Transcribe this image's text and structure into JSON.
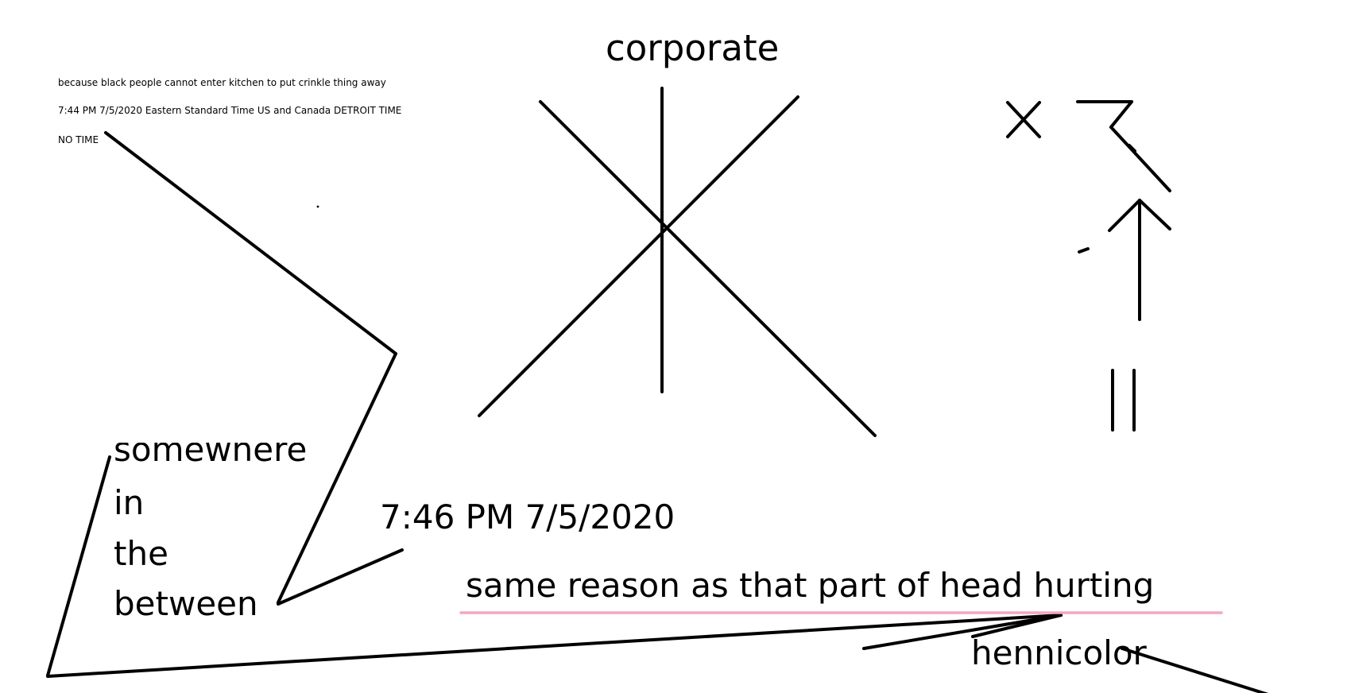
{
  "canvas": {
    "background": "#ffffff",
    "ink_color": "#000000",
    "underline_color": "#f4a6c1"
  },
  "notes": {
    "line1": "because black people cannot enter kitchen to put crinkle thing away",
    "line2": "7:44 PM 7/5/2020 Eastern Standard Time US and Canada DETROIT TIME",
    "line3": "NO TIME"
  },
  "labels": {
    "corporate": "corporate",
    "somewhere": "somewhere",
    "in": "in",
    "the": "the",
    "between": "between",
    "timestamp": "7:46 PM 7/5/2020",
    "reason": "same reason as that part of head hurting",
    "hennicolor": "hennicolor"
  },
  "symbols": {
    "x_mark": "x-symbol",
    "arrow": "up-arrow",
    "bars": "double-bar"
  }
}
